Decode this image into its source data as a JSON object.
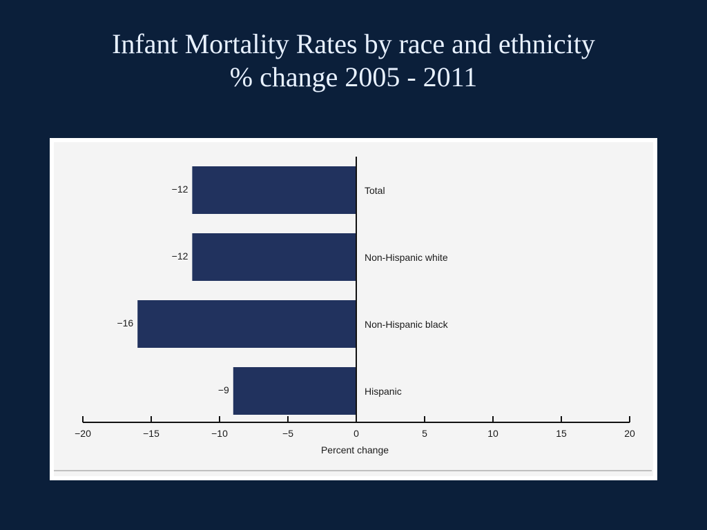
{
  "slide": {
    "title_line1": "Infant Mortality Rates by race and ethnicity",
    "title_line2": "% change 2005 - 2011"
  },
  "chart_data": {
    "type": "bar",
    "orientation": "horizontal",
    "categories": [
      "Total",
      "Non-Hispanic white",
      "Non-Hispanic black",
      "Hispanic"
    ],
    "values": [
      -12,
      -12,
      -16,
      -9
    ],
    "value_labels": [
      "−12",
      "−12",
      "−16",
      "−9"
    ],
    "xlabel": "Percent change",
    "xlim": [
      -20,
      20
    ],
    "xticks": [
      -20,
      -15,
      -10,
      -5,
      0,
      5,
      10,
      15,
      20
    ],
    "xtick_labels": [
      "−20",
      "−15",
      "−10",
      "−5",
      "0",
      "5",
      "10",
      "15",
      "20"
    ],
    "grid": false,
    "colors": {
      "bar": "#21325e",
      "axis": "#111111",
      "text": "#1a1a1a"
    }
  }
}
